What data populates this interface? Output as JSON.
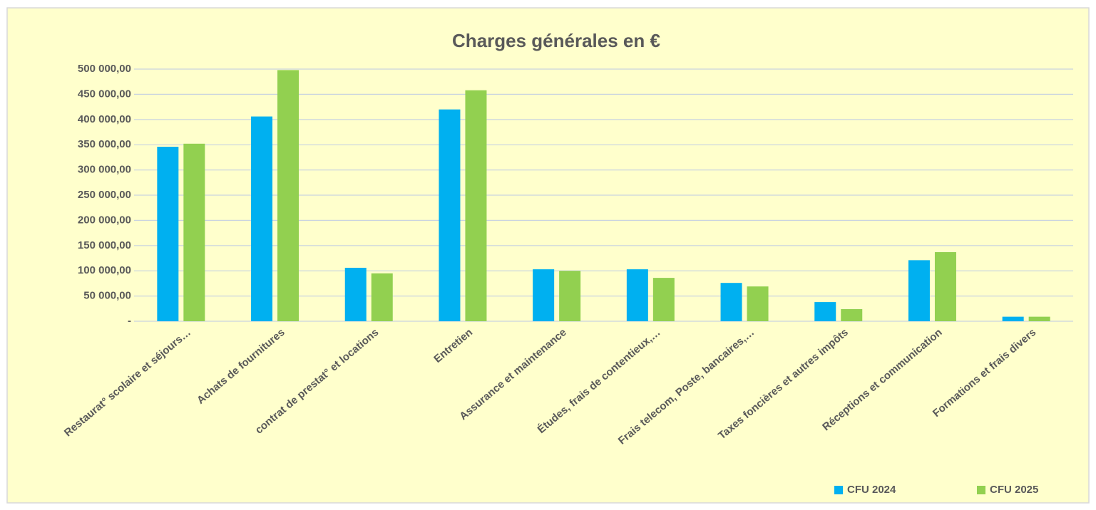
{
  "chart_data": {
    "type": "bar",
    "title": "Charges générales en €",
    "categories": [
      "Restaurat° scolaire et séjours…",
      "Achats de fournitures",
      "contrat de prestat° et locations",
      "Entretien",
      "Assurance et maintenance",
      "Études, frais de contentieux,…",
      "Frais telecom, Poste, bancaires,…",
      "Taxes foncières et autres impôts",
      "Réceptions et communication",
      "Formations et frais divers"
    ],
    "series": [
      {
        "name": "CFU 2024",
        "color": "#00b0f0",
        "values": [
          346000,
          406000,
          106000,
          420000,
          103000,
          103000,
          76000,
          38000,
          121000,
          9000
        ]
      },
      {
        "name": "CFU 2025",
        "color": "#92d050",
        "values": [
          352000,
          498000,
          95000,
          458000,
          100000,
          86000,
          69000,
          24000,
          137000,
          9000
        ]
      }
    ],
    "ylim": [
      0,
      500000
    ],
    "yticks": [
      {
        "value": 0,
        "label": "-"
      },
      {
        "value": 50000,
        "label": "50 000,00"
      },
      {
        "value": 100000,
        "label": "100 000,00"
      },
      {
        "value": 150000,
        "label": "150 000,00"
      },
      {
        "value": 200000,
        "label": "200 000,00"
      },
      {
        "value": 250000,
        "label": "250 000,00"
      },
      {
        "value": 300000,
        "label": "300 000,00"
      },
      {
        "value": 350000,
        "label": "350 000,00"
      },
      {
        "value": 400000,
        "label": "400 000,00"
      },
      {
        "value": 450000,
        "label": "450 000,00"
      },
      {
        "value": 500000,
        "label": "500 000,00"
      }
    ],
    "grid": true,
    "legend": "bottom-right"
  }
}
